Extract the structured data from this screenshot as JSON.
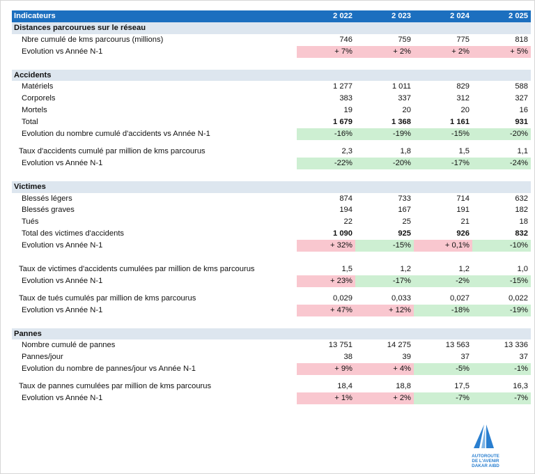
{
  "header": {
    "label": "Indicateurs",
    "years": [
      "2 022",
      "2 023",
      "2 024",
      "2 025"
    ]
  },
  "sections": [
    {
      "title": "Distances parcourues sur le réseau",
      "rows": [
        {
          "label": "Nbre cumulé de kms parcourus (millions)",
          "values": [
            "746",
            "759",
            "775",
            "818"
          ]
        },
        {
          "label": "Evolution vs Année N-1",
          "values": [
            "+ 7%",
            "+ 2%",
            "+ 2%",
            "+ 5%"
          ],
          "colors": [
            "red",
            "red",
            "red",
            "red"
          ]
        }
      ]
    },
    {
      "title": "Accidents",
      "rows": [
        {
          "label": "Matériels",
          "values": [
            "1 277",
            "1 011",
            "829",
            "588"
          ]
        },
        {
          "label": "Corporels",
          "values": [
            "383",
            "337",
            "312",
            "327"
          ]
        },
        {
          "label": "Mortels",
          "values": [
            "19",
            "20",
            "20",
            "16"
          ]
        },
        {
          "label": "Total",
          "values": [
            "1 679",
            "1 368",
            "1 161",
            "931"
          ],
          "bold": true
        },
        {
          "label": "Evolution du nombre cumulé d'accidents vs Année N-1",
          "values": [
            "-16%",
            "-19%",
            "-15%",
            "-20%"
          ],
          "colors": [
            "green",
            "green",
            "green",
            "green"
          ]
        },
        {
          "gap": "s"
        },
        {
          "label": "Taux d'accidents cumulé par million de kms parcourus",
          "values": [
            "2,3",
            "1,8",
            "1,5",
            "1,1"
          ],
          "indent": "lbl2"
        },
        {
          "label": "Evolution vs Année N-1",
          "values": [
            "-22%",
            "-20%",
            "-17%",
            "-24%"
          ],
          "colors": [
            "green",
            "green",
            "green",
            "green"
          ]
        }
      ]
    },
    {
      "title": "Victimes",
      "rows": [
        {
          "label": "Blessés légers",
          "values": [
            "874",
            "733",
            "714",
            "632"
          ]
        },
        {
          "label": "Blessés graves",
          "values": [
            "194",
            "167",
            "191",
            "182"
          ]
        },
        {
          "label": "Tués",
          "values": [
            "22",
            "25",
            "21",
            "18"
          ]
        },
        {
          "label": "Total des victimes d'accidents",
          "values": [
            "1 090",
            "925",
            "926",
            "832"
          ],
          "bold": true
        },
        {
          "label": "Evolution vs Année N-1",
          "values": [
            "+ 32%",
            "-15%",
            "+ 0,1%",
            "-10%"
          ],
          "colors": [
            "red",
            "green",
            "red",
            "green"
          ]
        },
        {
          "gap": "l"
        },
        {
          "label": "Taux de victimes d'accidents cumulées par million de kms parcourus",
          "values": [
            "1,5",
            "1,2",
            "1,2",
            "1,0"
          ],
          "indent": "lbl2"
        },
        {
          "label": "Evolution vs Année N-1",
          "values": [
            "+ 23%",
            "-17%",
            "-2%",
            "-15%"
          ],
          "colors": [
            "red",
            "green",
            "green",
            "green"
          ]
        },
        {
          "gap": "s"
        },
        {
          "label": "Taux de tués cumulés par million de kms parcourus",
          "values": [
            "0,029",
            "0,033",
            "0,027",
            "0,022"
          ],
          "indent": "lbl2"
        },
        {
          "label": "Evolution vs Année N-1",
          "values": [
            "+ 47%",
            "+ 12%",
            "-18%",
            "-19%"
          ],
          "colors": [
            "red",
            "red",
            "green",
            "green"
          ]
        }
      ]
    },
    {
      "title": "Pannes",
      "rows": [
        {
          "label": "Nombre cumulé de pannes",
          "values": [
            "13 751",
            "14 275",
            "13 563",
            "13 336"
          ]
        },
        {
          "label": "Pannes/jour",
          "values": [
            "38",
            "39",
            "37",
            "37"
          ]
        },
        {
          "label": "Evolution du nombre de pannes/jour vs Année N-1",
          "values": [
            "+ 9%",
            "+ 4%",
            "-5%",
            "-1%"
          ],
          "colors": [
            "red",
            "red",
            "green",
            "green"
          ]
        },
        {
          "gap": "s"
        },
        {
          "label": "Taux de pannes cumulées par million de kms parcourus",
          "values": [
            "18,4",
            "18,8",
            "17,5",
            "16,3"
          ],
          "indent": "lbl2"
        },
        {
          "label": "Evolution vs Année N-1",
          "values": [
            "+ 1%",
            "+ 2%",
            "-7%",
            "-7%"
          ],
          "colors": [
            "red",
            "red",
            "green",
            "green"
          ]
        }
      ]
    }
  ],
  "logo": {
    "lines": [
      "AUTOROUTE",
      "DE L'AVENIR",
      "DAKAR AIBD"
    ],
    "color": "#2a7fd0"
  },
  "colors": {
    "header": "#1c6fbf",
    "section": "#dde6ef",
    "red": "#f9c7cf",
    "green": "#cdefd2"
  }
}
